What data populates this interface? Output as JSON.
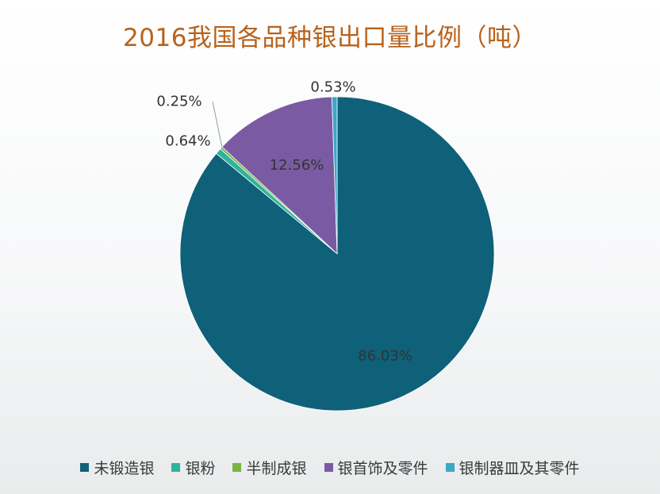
{
  "chart_data": {
    "type": "pie",
    "title": "2016我国各品种银出口量比例（吨）",
    "start_angle_deg": 0,
    "direction": "clockwise",
    "legend_position": "bottom",
    "slices": [
      {
        "name": "未锻造银",
        "value": 86.03,
        "label": "86.03%",
        "color": "#0e6179"
      },
      {
        "name": "银粉",
        "value": 0.64,
        "label": "0.64%",
        "color": "#2fb39c"
      },
      {
        "name": "半制成银",
        "value": 0.25,
        "label": "0.25%",
        "color": "#79b343"
      },
      {
        "name": "银首饰及零件",
        "value": 12.56,
        "label": "12.56%",
        "color": "#7a5ba3"
      },
      {
        "name": "银制器皿及其零件",
        "value": 0.53,
        "label": "0.53%",
        "color": "#3da7c6"
      }
    ]
  }
}
